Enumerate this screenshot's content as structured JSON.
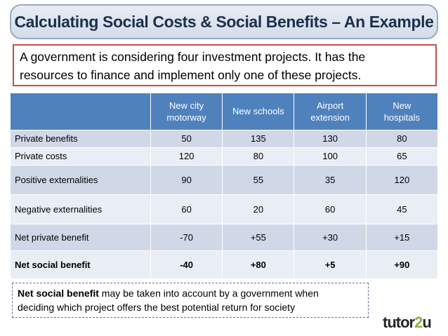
{
  "title": "Calculating Social Costs & Social Benefits – An Example",
  "intro": {
    "line1": "A government is considering four investment projects. It has the",
    "line2": "resources to finance and implement only one of these projects."
  },
  "table": {
    "columns": [
      {
        "line1": "New city",
        "line2": "motorway"
      },
      {
        "line1": "New schools",
        "line2": ""
      },
      {
        "line1": "Airport",
        "line2": "extension"
      },
      {
        "line1": "New",
        "line2": "hospitals"
      }
    ],
    "rows": [
      {
        "label": "Private benefits",
        "values": [
          "50",
          "135",
          "130",
          "80"
        ]
      },
      {
        "label": "Private costs",
        "values": [
          "120",
          "80",
          "100",
          "65"
        ]
      },
      {
        "label": "Positive externalities",
        "values": [
          "90",
          "55",
          "35",
          "120"
        ]
      },
      {
        "label": "Negative externalities",
        "values": [
          "60",
          "20",
          "60",
          "45"
        ]
      },
      {
        "label": "Net private benefit",
        "values": [
          "-70",
          "+55",
          "+30",
          "+15"
        ]
      },
      {
        "label": "Net social benefit",
        "values": [
          "-40",
          "+80",
          "+5",
          "+90"
        ]
      }
    ]
  },
  "note": {
    "bold": "Net social benefit",
    "rest": " may be taken into account by a government when",
    "line2": "deciding which project offers the best potential return for society"
  },
  "logo": {
    "part1": "tutor",
    "part2": "2",
    "part3": "u"
  },
  "colors": {
    "header_blue": "#4f81bd",
    "row_dark": "#d0d8e8",
    "row_light": "#e9edf4",
    "intro_border": "#c0504d",
    "note_border": "#7f5f9f",
    "title_text": "#1c2f4d"
  }
}
